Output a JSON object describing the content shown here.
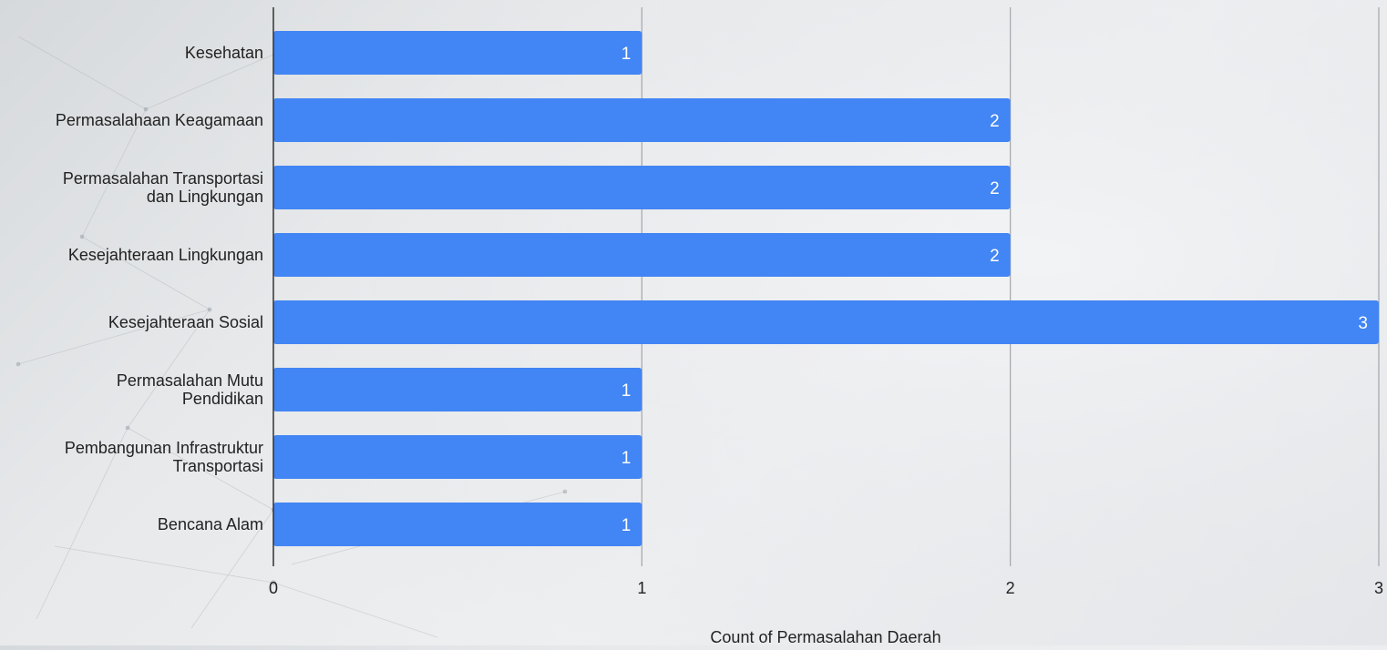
{
  "chart_data": {
    "type": "bar",
    "orientation": "horizontal",
    "categories": [
      [
        "Kesehatan"
      ],
      [
        "Permasalahaan Keagamaan"
      ],
      [
        "Permasalahan Transportasi",
        "dan Lingkungan"
      ],
      [
        "Kesejahteraan Lingkungan"
      ],
      [
        "Kesejahteraan Sosial"
      ],
      [
        "Permasalahan Mutu",
        "Pendidikan"
      ],
      [
        "Pembangunan Infrastruktur",
        "Transportasi"
      ],
      [
        "Bencana Alam"
      ]
    ],
    "values": [
      1,
      2,
      2,
      2,
      3,
      1,
      1,
      1
    ],
    "xlabel": "Count of Permasalahan Daerah",
    "ylabel": "",
    "xlim": [
      0,
      3
    ],
    "x_ticks": [
      0,
      1,
      2,
      3
    ],
    "grid": true,
    "data_labels": true,
    "bar_color": "#4285f4",
    "label_color": "#ffffff",
    "text_color": "#222222"
  }
}
